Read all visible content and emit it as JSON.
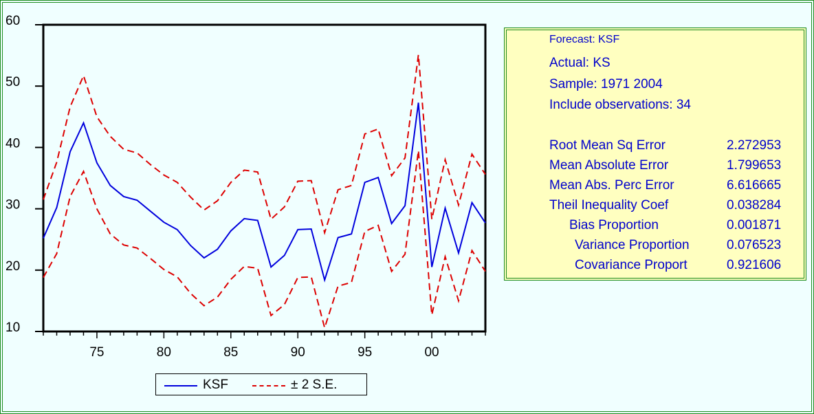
{
  "chart_data": {
    "type": "line",
    "xlabel": "",
    "ylabel": "",
    "xlim": [
      1971,
      2004
    ],
    "ylim": [
      10,
      60
    ],
    "y_ticks": [
      "60",
      "50",
      "40",
      "30",
      "20",
      "10"
    ],
    "x_tick_labels": [
      {
        "x": 1975,
        "label": "75"
      },
      {
        "x": 1980,
        "label": "80"
      },
      {
        "x": 1985,
        "label": "85"
      },
      {
        "x": 1990,
        "label": "90"
      },
      {
        "x": 1995,
        "label": "95"
      },
      {
        "x": 2000,
        "label": "00"
      }
    ],
    "x": [
      1971,
      1972,
      1973,
      1974,
      1975,
      1976,
      1977,
      1978,
      1979,
      1980,
      1981,
      1982,
      1983,
      1984,
      1985,
      1986,
      1987,
      1988,
      1989,
      1990,
      1991,
      1992,
      1993,
      1994,
      1995,
      1996,
      1997,
      1998,
      1999,
      2000,
      2001,
      2002,
      2003,
      2004
    ],
    "series": [
      {
        "name": "KSF",
        "color": "#0000dd",
        "style": "solid",
        "values": [
          25.2,
          30.2,
          39.3,
          44.0,
          37.5,
          33.8,
          32.0,
          31.4,
          29.6,
          27.8,
          26.6,
          24.0,
          22.0,
          23.4,
          26.4,
          28.4,
          28.1,
          20.5,
          22.4,
          26.6,
          26.7,
          18.4,
          25.3,
          25.9,
          34.3,
          35.1,
          27.6,
          30.5,
          47.3,
          20.5,
          30.1,
          22.8,
          31.0,
          27.7
        ]
      },
      {
        "name": "± 2 S.E.",
        "color": "#dd0000",
        "style": "dashed",
        "values_upper": [
          31.5,
          37.6,
          46.6,
          51.7,
          45.0,
          41.8,
          39.7,
          39.1,
          37.2,
          35.5,
          34.3,
          31.9,
          29.8,
          31.3,
          34.3,
          36.3,
          36.0,
          28.3,
          30.3,
          34.5,
          34.6,
          26.1,
          33.1,
          33.8,
          42.2,
          43.0,
          35.4,
          38.3,
          55.1,
          28.3,
          38.0,
          30.6,
          38.9,
          35.6
        ],
        "values_lower": [
          18.8,
          22.7,
          32.0,
          36.1,
          30.0,
          25.9,
          24.1,
          23.6,
          21.9,
          20.1,
          18.9,
          16.2,
          14.2,
          15.6,
          18.5,
          20.6,
          20.3,
          12.6,
          14.4,
          18.8,
          18.9,
          10.6,
          17.4,
          18.0,
          26.3,
          27.3,
          19.8,
          22.6,
          39.5,
          12.7,
          22.2,
          15.0,
          23.2,
          19.8
        ]
      }
    ],
    "legend": {
      "position": "bottom",
      "entries": [
        {
          "label": "KSF",
          "color": "#0000dd",
          "style": "solid"
        },
        {
          "label": "± 2 S.E.",
          "color": "#dd0000",
          "style": "dashed"
        }
      ]
    },
    "grid": false
  },
  "stats": {
    "title": "Forecast: KSF",
    "actual": "Actual: KS",
    "sample": "Sample: 1971 2004",
    "observations": "Include observations: 34",
    "rows": [
      {
        "label": "Root Mean Sq Error",
        "value": "2.272953"
      },
      {
        "label": "Mean Absolute Error",
        "value": "1.799653"
      },
      {
        "label": "Mean Abs. Perc Error",
        "value": "6.616665"
      },
      {
        "label": "Theil Inequality Coef",
        "value": "0.038284"
      },
      {
        "label": "Bias Proportion",
        "value": "0.001871"
      },
      {
        "label": "Variance Proportion",
        "value": "0.076523"
      },
      {
        "label": "Covariance Proport",
        "value": "0.921606"
      }
    ]
  },
  "colors": {
    "background": "#f0ffff",
    "frame_border": "#1a8a1a",
    "stats_background": "#ffffc0",
    "stats_text": "#0000cc"
  }
}
